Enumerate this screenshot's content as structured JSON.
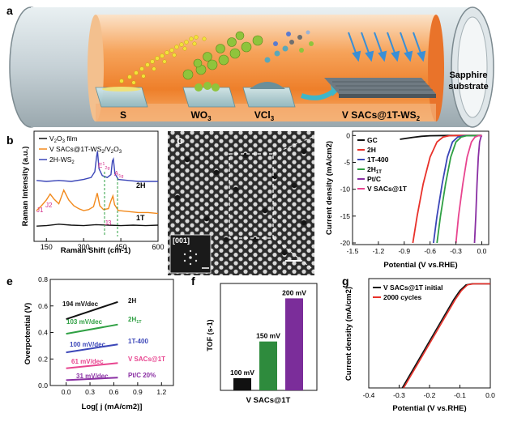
{
  "panels": {
    "a": {
      "label": "a",
      "sources": [
        "S",
        "WO",
        "VCl"
      ],
      "source_subscripts": [
        "",
        "3",
        "3"
      ],
      "product": "V SACs@1T-WS",
      "product_subscript": "2",
      "substrate_line1": "Sapphire",
      "substrate_line2": "substrate"
    },
    "b": {
      "label": "b",
      "legend": [
        {
          "text": "V",
          "sub": "2",
          "text2": "O",
          "sub2": "3",
          "text3": " film",
          "color": "#111111"
        },
        {
          "text": "V SACs@1T-WS",
          "sub": "2",
          "text2": "/V",
          "sub2": "2",
          "text3": "O",
          "sub3": "3",
          "color": "#f28a1d"
        },
        {
          "text": "2H-WS",
          "sub": "2",
          "text2": "",
          "sub2": "",
          "text3": "",
          "color": "#3b46b8"
        }
      ],
      "labels_2h": "2H",
      "labels_1t": "1T",
      "peaks": [
        "J1",
        "J2",
        "J3",
        "E",
        "A"
      ],
      "peak_e_sup": "1",
      "peak_e_sub": "2g",
      "peak_a_sub": "1g"
    },
    "c": {
      "label": "c",
      "inset_label": "[001]"
    },
    "e": {
      "label": "e",
      "slopes": [
        "194 mV/dec",
        "103 mV/dec",
        "100 mV/dec",
        "61 mV/dec",
        "31 mV/dec"
      ],
      "names": [
        {
          "text": "2H",
          "sub": ""
        },
        {
          "text": "2H",
          "sub": "1T"
        },
        {
          "text": "1T-400",
          "sub": ""
        },
        {
          "text": "V SACs@1T",
          "sub": ""
        },
        {
          "text": "Pt/C 20%",
          "sub": ""
        }
      ]
    },
    "f": {
      "label": "f"
    },
    "g": {
      "label": "g"
    }
  },
  "chart_data": [
    {
      "id": "b",
      "type": "line",
      "title": "",
      "xlabel": "Raman Shift (cm-1)",
      "ylabel": "Raman Intensity (a.u.)",
      "xlim": [
        100,
        600
      ],
      "xticks": [
        "150",
        "300",
        "450",
        "600"
      ],
      "xtick_values": [
        150,
        300,
        450,
        600
      ],
      "series": [
        {
          "name": "V2O3 film",
          "color": "#111111",
          "x": [
            110,
            150,
            200,
            250,
            300,
            350,
            400,
            450,
            500,
            550,
            600
          ],
          "y": [
            0.9,
            0.95,
            1.1,
            1.0,
            0.95,
            1.05,
            1.0,
            0.95,
            1.0,
            0.95,
            1.0
          ]
        },
        {
          "name": "V SACs@1T-WS2/V2O3",
          "color": "#f28a1d",
          "x": [
            110,
            130,
            150,
            165,
            180,
            200,
            220,
            240,
            260,
            280,
            300,
            320,
            340,
            355,
            365,
            380,
            400,
            410,
            418,
            425,
            440,
            480,
            520,
            560,
            600
          ],
          "y": [
            2.5,
            3.0,
            3.6,
            4.2,
            3.7,
            3.2,
            4.6,
            3.6,
            3.0,
            2.7,
            2.5,
            2.6,
            2.9,
            4.3,
            3.0,
            2.6,
            2.7,
            3.5,
            4.0,
            3.1,
            2.5,
            2.4,
            2.3,
            2.3,
            2.2
          ]
        },
        {
          "name": "2H-WS2",
          "color": "#3b46b8",
          "x": [
            110,
            150,
            200,
            250,
            300,
            330,
            345,
            352,
            356,
            362,
            375,
            395,
            410,
            416,
            420,
            426,
            440,
            480,
            520,
            560,
            600
          ],
          "y": [
            5.6,
            5.5,
            5.6,
            5.5,
            5.7,
            5.9,
            6.5,
            8.0,
            8.6,
            6.8,
            6.1,
            5.9,
            6.2,
            7.6,
            7.8,
            6.3,
            5.7,
            5.6,
            5.5,
            5.5,
            5.5
          ]
        }
      ]
    },
    {
      "id": "d",
      "type": "line",
      "title": "",
      "xlabel": "Potential (V vs.RHE)",
      "ylabel": "Current density (mA/cm2)",
      "xlim": [
        -1.5,
        0.08
      ],
      "ylim": [
        -20,
        0.5
      ],
      "xticks": [
        "-1.5",
        "-1.2",
        "-0.9",
        "-0.6",
        "-0.3",
        "0.0"
      ],
      "xtick_values": [
        -1.5,
        -1.2,
        -0.9,
        -0.6,
        -0.3,
        0.0
      ],
      "yticks": [
        "0",
        "-5",
        "-10",
        "-15",
        "-20"
      ],
      "ytick_values": [
        0,
        -5,
        -10,
        -15,
        -20
      ],
      "series": [
        {
          "name": "GC",
          "color": "#111111",
          "x": [
            -0.95,
            -0.8,
            -0.7,
            -0.6,
            -0.4,
            0.0
          ],
          "y": [
            -0.7,
            -0.35,
            -0.15,
            -0.05,
            0,
            0
          ]
        },
        {
          "name": "2H",
          "color": "#e8312a",
          "x": [
            -0.8,
            -0.75,
            -0.68,
            -0.6,
            -0.52,
            -0.45,
            -0.38,
            -0.3,
            0.0
          ],
          "y": [
            -20,
            -15,
            -9,
            -4,
            -1.2,
            -0.3,
            -0.05,
            0,
            0
          ]
        },
        {
          "name": "1T-400",
          "color": "#3b46b8",
          "x": [
            -0.56,
            -0.52,
            -0.46,
            -0.4,
            -0.34,
            -0.28,
            -0.2,
            0.0
          ],
          "y": [
            -20,
            -15,
            -9,
            -4,
            -1.2,
            -0.3,
            -0.05,
            0
          ]
        },
        {
          "name": "2H1T",
          "color": "#2fa043",
          "x": [
            -0.52,
            -0.48,
            -0.42,
            -0.36,
            -0.3,
            -0.24,
            -0.18,
            0.0
          ],
          "y": [
            -20,
            -15,
            -9,
            -4,
            -1.2,
            -0.3,
            -0.05,
            0
          ]
        },
        {
          "name": "Pt/C",
          "color": "#8a2fa3",
          "x": [
            -0.085,
            -0.07,
            -0.055,
            -0.04,
            -0.025,
            -0.01,
            0.0
          ],
          "y": [
            -20,
            -15,
            -9,
            -4,
            -1.2,
            -0.3,
            0
          ]
        },
        {
          "name": "V SACs@1T",
          "color": "#e8448f",
          "x": [
            -0.3,
            -0.27,
            -0.22,
            -0.17,
            -0.12,
            -0.08,
            -0.04,
            0.0
          ],
          "y": [
            -20,
            -15,
            -9,
            -4,
            -1.2,
            -0.3,
            -0.05,
            0
          ]
        }
      ]
    },
    {
      "id": "e",
      "type": "line",
      "title": "",
      "xlabel": "Log[ j (mA/cm2)]",
      "ylabel": "Overpotential (V)",
      "xlim": [
        -0.2,
        1.35
      ],
      "ylim": [
        0.0,
        0.8
      ],
      "xticks": [
        "0.0",
        "0.3",
        "0.6",
        "0.9",
        "1.2"
      ],
      "xtick_values": [
        0.0,
        0.3,
        0.6,
        0.9,
        1.2
      ],
      "yticks": [
        "0.0",
        "0.2",
        "0.4",
        "0.6",
        "0.8"
      ],
      "ytick_values": [
        0.0,
        0.2,
        0.4,
        0.6,
        0.8
      ],
      "series": [
        {
          "name": "2H",
          "color": "#111111",
          "x": [
            0.0,
            0.65
          ],
          "y": [
            0.5,
            0.63
          ]
        },
        {
          "name": "2H1T",
          "color": "#2fa043",
          "x": [
            0.0,
            0.65
          ],
          "y": [
            0.39,
            0.46
          ]
        },
        {
          "name": "1T-400",
          "color": "#3b46b8",
          "x": [
            0.0,
            0.65
          ],
          "y": [
            0.25,
            0.31
          ]
        },
        {
          "name": "V SACs@1T",
          "color": "#e8448f",
          "x": [
            0.0,
            0.65
          ],
          "y": [
            0.13,
            0.17
          ]
        },
        {
          "name": "Pt/C 20%",
          "color": "#8a2fa3",
          "x": [
            0.0,
            0.65
          ],
          "y": [
            0.04,
            0.06
          ]
        }
      ]
    },
    {
      "id": "f",
      "type": "bar",
      "title": "",
      "xlabel": "V SACs@1T",
      "ylabel": "TOF (s-1)",
      "ylim": [
        0,
        28
      ],
      "categories": [
        "100 mV",
        "150 mV",
        "200 mV"
      ],
      "values": [
        3.2,
        12.8,
        24.1
      ],
      "colors": [
        "#111111",
        "#2e8b3d",
        "#7b2d9a"
      ]
    },
    {
      "id": "g",
      "type": "line",
      "title": "",
      "xlabel": "Potential (V vs.RHE)",
      "ylabel": "Current density (mA/cm2)",
      "xlim": [
        -0.4,
        0.0
      ],
      "ylim": [
        -20,
        1
      ],
      "xticks": [
        "-0.4",
        "-0.3",
        "-0.2",
        "-0.1",
        "0.0"
      ],
      "xtick_values": [
        -0.4,
        -0.3,
        -0.2,
        -0.1,
        0.0
      ],
      "series": [
        {
          "name": "V SACs@1T initial",
          "color": "#111111",
          "x": [
            -0.29,
            -0.25,
            -0.2,
            -0.16,
            -0.12,
            -0.1,
            -0.08,
            -0.06,
            -0.02,
            0.0
          ],
          "y": [
            -20,
            -16,
            -11,
            -7,
            -3,
            -1.3,
            -0.2,
            0,
            0,
            0
          ]
        },
        {
          "name": "2000 cycles",
          "color": "#e8312a",
          "x": [
            -0.285,
            -0.245,
            -0.195,
            -0.155,
            -0.115,
            -0.095,
            -0.075,
            -0.055,
            -0.02,
            0.0
          ],
          "y": [
            -20,
            -16,
            -11,
            -7,
            -3,
            -1.3,
            -0.2,
            0,
            0,
            0
          ]
        }
      ]
    }
  ]
}
